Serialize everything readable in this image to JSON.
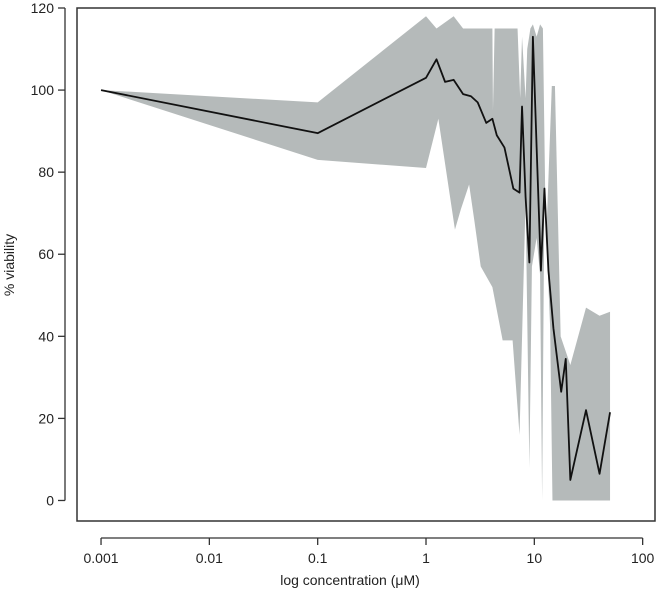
{
  "chart_data": {
    "type": "line",
    "title": "",
    "xlabel": "log concentration (μM)",
    "ylabel": "% viability",
    "x_scale": "log",
    "xlim": [
      0.0006,
      130
    ],
    "ylim": [
      -5,
      120
    ],
    "x_ticks": [
      0.001,
      0.01,
      0.1,
      1,
      10,
      100
    ],
    "x_tick_labels": [
      "0.001",
      "0.01",
      "0.1",
      "1",
      "10",
      "100"
    ],
    "y_ticks": [
      0,
      20,
      40,
      60,
      80,
      100,
      120
    ],
    "y_tick_labels": [
      "0",
      "20",
      "40",
      "60",
      "80",
      "100",
      "120"
    ],
    "grid": false,
    "legend": "none",
    "colors": {
      "line": "#111111",
      "band": "#b5baba",
      "frame": "#333333"
    },
    "series": [
      {
        "values": [
          {
            "x": 0.001,
            "y": 100
          },
          {
            "x": 0.1,
            "y": 89.5
          },
          {
            "x": 1.0,
            "y": 103
          },
          {
            "x": 1.25,
            "y": 107.5
          },
          {
            "x": 1.5,
            "y": 102
          },
          {
            "x": 1.8,
            "y": 102.5
          },
          {
            "x": 2.2,
            "y": 99
          },
          {
            "x": 2.6,
            "y": 98.5
          },
          {
            "x": 3.0,
            "y": 97
          },
          {
            "x": 3.6,
            "y": 92
          },
          {
            "x": 4.1,
            "y": 93
          },
          {
            "x": 4.5,
            "y": 89
          },
          {
            "x": 5.3,
            "y": 86
          },
          {
            "x": 6.4,
            "y": 76
          },
          {
            "x": 7.3,
            "y": 75
          },
          {
            "x": 7.7,
            "y": 96
          },
          {
            "x": 8.3,
            "y": 74
          },
          {
            "x": 9.0,
            "y": 58
          },
          {
            "x": 9.7,
            "y": 113
          },
          {
            "x": 10.5,
            "y": 86
          },
          {
            "x": 11.5,
            "y": 56
          },
          {
            "x": 12.4,
            "y": 76
          },
          {
            "x": 13.5,
            "y": 56
          },
          {
            "x": 15.0,
            "y": 42
          },
          {
            "x": 17.7,
            "y": 26.5
          },
          {
            "x": 19.5,
            "y": 34.5
          },
          {
            "x": 21.5,
            "y": 5
          },
          {
            "x": 30.0,
            "y": 22
          },
          {
            "x": 40.0,
            "y": 6.5
          },
          {
            "x": 50.0,
            "y": 21.5
          }
        ],
        "band_upper": [
          {
            "x": 0.001,
            "y": 100
          },
          {
            "x": 0.1,
            "y": 97
          },
          {
            "x": 1.0,
            "y": 118
          },
          {
            "x": 1.25,
            "y": 115
          },
          {
            "x": 1.8,
            "y": 118
          },
          {
            "x": 2.2,
            "y": 115
          },
          {
            "x": 4.1,
            "y": 115
          },
          {
            "x": 4.15,
            "y": 95
          },
          {
            "x": 4.3,
            "y": 115
          },
          {
            "x": 7.0,
            "y": 115
          },
          {
            "x": 7.4,
            "y": 98
          },
          {
            "x": 7.7,
            "y": 113
          },
          {
            "x": 8.3,
            "y": 98
          },
          {
            "x": 8.6,
            "y": 110
          },
          {
            "x": 9.2,
            "y": 115
          },
          {
            "x": 9.7,
            "y": 116
          },
          {
            "x": 10.5,
            "y": 113
          },
          {
            "x": 11.3,
            "y": 116
          },
          {
            "x": 12.0,
            "y": 115
          },
          {
            "x": 12.8,
            "y": 62
          },
          {
            "x": 14.5,
            "y": 101
          },
          {
            "x": 15.5,
            "y": 101
          },
          {
            "x": 17.5,
            "y": 40
          },
          {
            "x": 21.5,
            "y": 33
          },
          {
            "x": 30.0,
            "y": 47
          },
          {
            "x": 40.0,
            "y": 45
          },
          {
            "x": 50.0,
            "y": 46
          }
        ],
        "band_lower": [
          {
            "x": 50.0,
            "y": 0
          },
          {
            "x": 14.7,
            "y": 0
          },
          {
            "x": 14.0,
            "y": 42
          },
          {
            "x": 12.4,
            "y": 76
          },
          {
            "x": 11.8,
            "y": 0
          },
          {
            "x": 11.3,
            "y": 55
          },
          {
            "x": 10.5,
            "y": 64
          },
          {
            "x": 9.5,
            "y": 57
          },
          {
            "x": 9.0,
            "y": 8
          },
          {
            "x": 8.3,
            "y": 73
          },
          {
            "x": 7.3,
            "y": 16
          },
          {
            "x": 6.3,
            "y": 39
          },
          {
            "x": 5.1,
            "y": 39
          },
          {
            "x": 4.1,
            "y": 52
          },
          {
            "x": 3.2,
            "y": 57
          },
          {
            "x": 2.8,
            "y": 68
          },
          {
            "x": 2.5,
            "y": 77
          },
          {
            "x": 2.1,
            "y": 71
          },
          {
            "x": 1.85,
            "y": 66
          },
          {
            "x": 1.3,
            "y": 93
          },
          {
            "x": 1.0,
            "y": 81
          },
          {
            "x": 0.1,
            "y": 83
          },
          {
            "x": 0.001,
            "y": 100
          }
        ]
      }
    ]
  }
}
